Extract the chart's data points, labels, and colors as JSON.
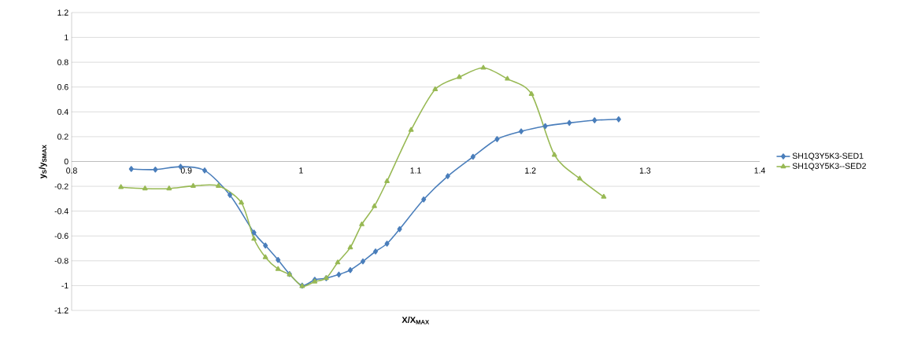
{
  "chart_data": {
    "type": "line",
    "xlabel": "X/X$_{MAX}$",
    "ylabel": "y$_{S}$/y$_{SMAX}$",
    "xlim": [
      0.8,
      1.4
    ],
    "xticks": [
      0.8,
      0.9,
      1,
      1.1,
      1.2,
      1.3,
      1.4
    ],
    "ylim": [
      -1.2,
      1.2
    ],
    "yticks": [
      -1.2,
      -1,
      -0.8,
      -0.6,
      -0.4,
      -0.2,
      0,
      0.2,
      0.4,
      0.6,
      0.8,
      1,
      1.2
    ],
    "grid": "y",
    "legend": "right",
    "line_style": "solid",
    "series": [
      {
        "name": "SH1Q3Y5K3-SED1",
        "color": "#4a7ebb",
        "marker": "diamond",
        "x": [
          0.852,
          0.873,
          0.895,
          0.916,
          0.938,
          0.959,
          0.969,
          0.98,
          0.99,
          1.001,
          1.012,
          1.022,
          1.033,
          1.043,
          1.054,
          1.065,
          1.075,
          1.086,
          1.107,
          1.128,
          1.15,
          1.171,
          1.192,
          1.213,
          1.234,
          1.256,
          1.277
        ],
        "values": [
          -0.06,
          -0.065,
          -0.042,
          -0.072,
          -0.27,
          -0.573,
          -0.677,
          -0.793,
          -0.907,
          -1.0,
          -0.953,
          -0.94,
          -0.911,
          -0.875,
          -0.805,
          -0.725,
          -0.662,
          -0.545,
          -0.306,
          -0.118,
          0.038,
          0.18,
          0.243,
          0.285,
          0.311,
          0.332,
          0.34
        ]
      },
      {
        "name": "SH1Q3Y5K3--SED2",
        "color": "#98b954",
        "marker": "triangle",
        "x": [
          0.843,
          0.864,
          0.885,
          0.906,
          0.928,
          0.948,
          0.959,
          0.969,
          0.98,
          0.99,
          1.001,
          1.012,
          1.022,
          1.032,
          1.043,
          1.053,
          1.064,
          1.075,
          1.096,
          1.117,
          1.138,
          1.159,
          1.18,
          1.201,
          1.221,
          1.243,
          1.264
        ],
        "values": [
          -0.207,
          -0.218,
          -0.218,
          -0.197,
          -0.197,
          -0.332,
          -0.624,
          -0.772,
          -0.867,
          -0.911,
          -1.005,
          -0.968,
          -0.94,
          -0.814,
          -0.693,
          -0.507,
          -0.36,
          -0.159,
          0.254,
          0.581,
          0.68,
          0.755,
          0.666,
          0.543,
          0.053,
          -0.138,
          -0.285
        ]
      }
    ]
  }
}
